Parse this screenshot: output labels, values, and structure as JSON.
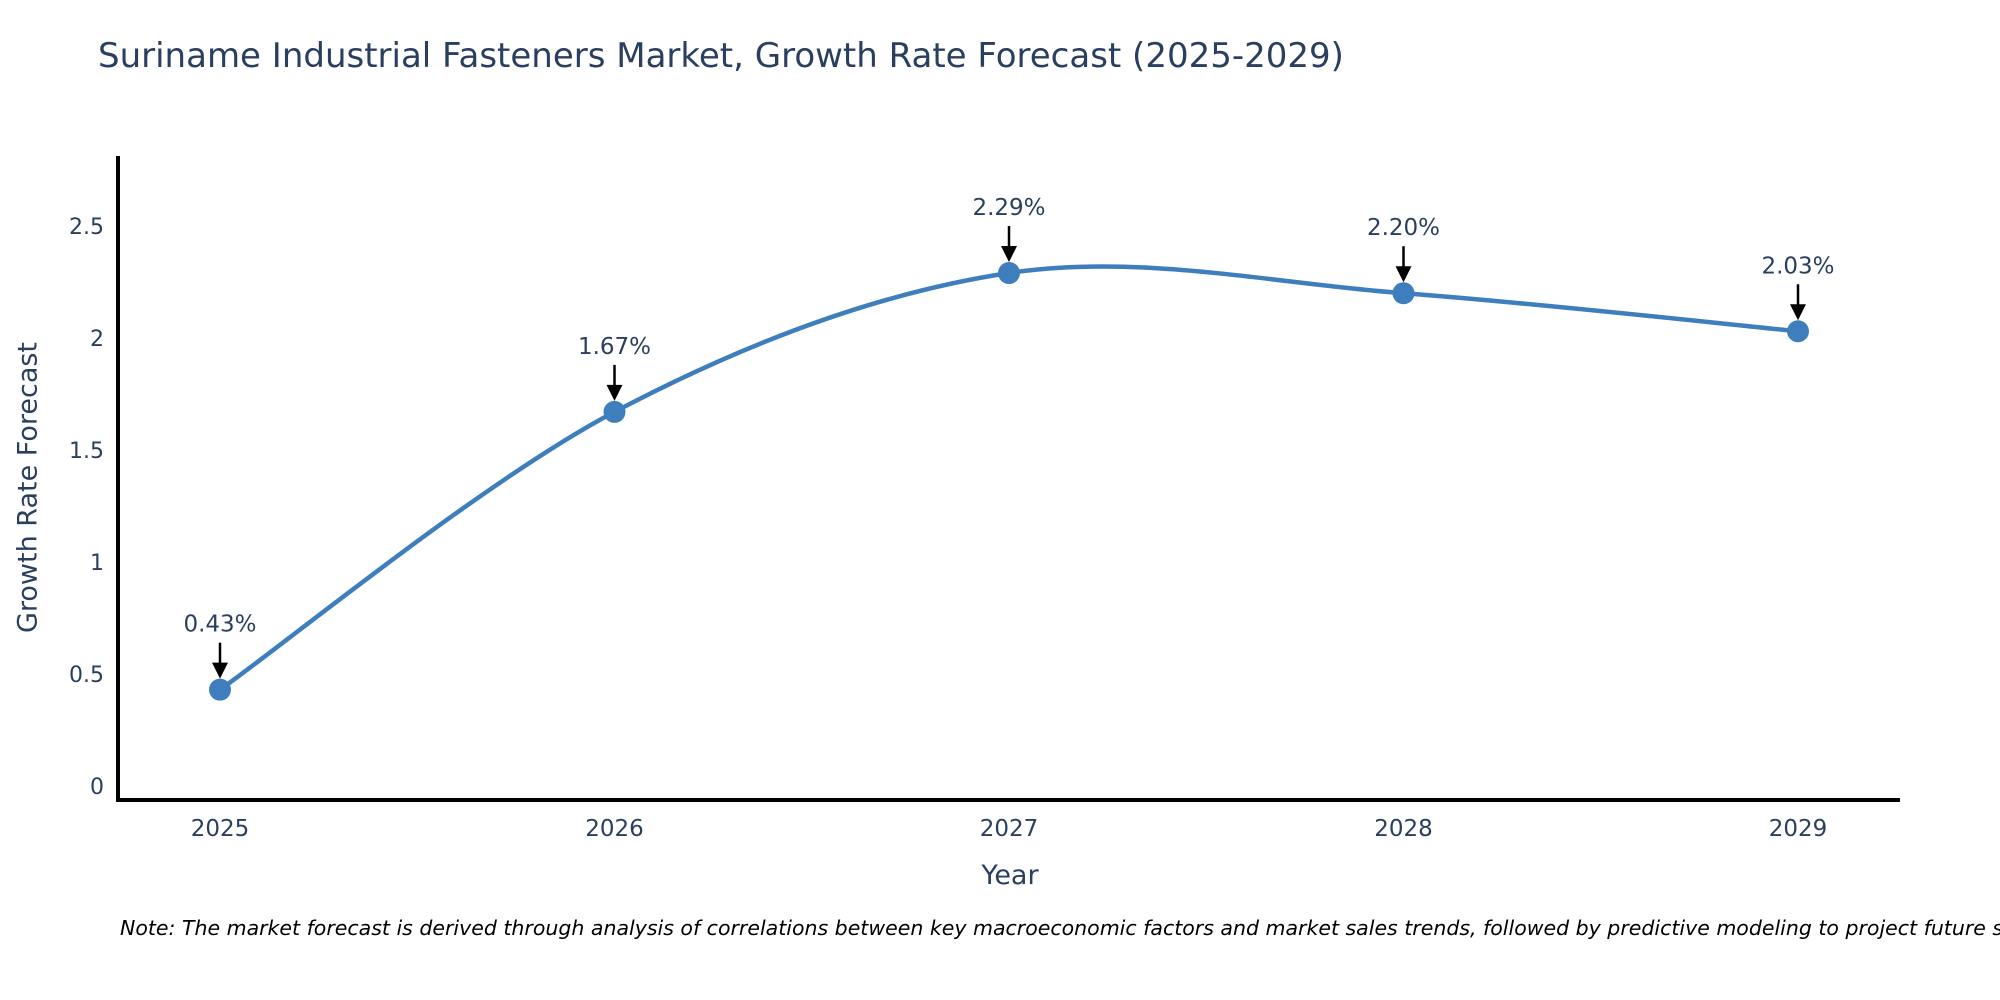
{
  "header": {
    "title": "Suriname Industrial Fasteners Market, Growth Rate Forecast (2025-2029)"
  },
  "footnote": "Note: The market forecast is derived through analysis of correlations between key macroeconomic factors and market sales trends, followed by predictive modeling to project future sales",
  "chart_data": {
    "type": "line",
    "title": "Suriname Industrial Fasteners Market, Growth Rate Forecast (2025-2029)",
    "xlabel": "Year",
    "ylabel": "Growth Rate Forecast",
    "categories": [
      "2025",
      "2026",
      "2027",
      "2028",
      "2029"
    ],
    "values": [
      0.43,
      1.67,
      2.29,
      2.2,
      2.03
    ],
    "point_labels": [
      "0.43%",
      "1.67%",
      "2.29%",
      "2.20%",
      "2.03%"
    ],
    "yticks": [
      0,
      0.5,
      1,
      1.5,
      2,
      2.5
    ],
    "ytick_labels": [
      "0",
      "0.5",
      "1",
      "1.5",
      "2",
      "2.5"
    ],
    "ylim": [
      -0.0625,
      2.87
    ],
    "line_shape": "spline",
    "show_markers": true,
    "grid": false,
    "legend": "none",
    "colors": {
      "line": "#3E7EBC",
      "marker": "#3E7EBC",
      "axis_line": "#000000",
      "tick_text": "#2a3f5f",
      "annotation_text": "#2a3f5f",
      "annotation_arrow": "#000000",
      "background": "#ffffff"
    }
  }
}
